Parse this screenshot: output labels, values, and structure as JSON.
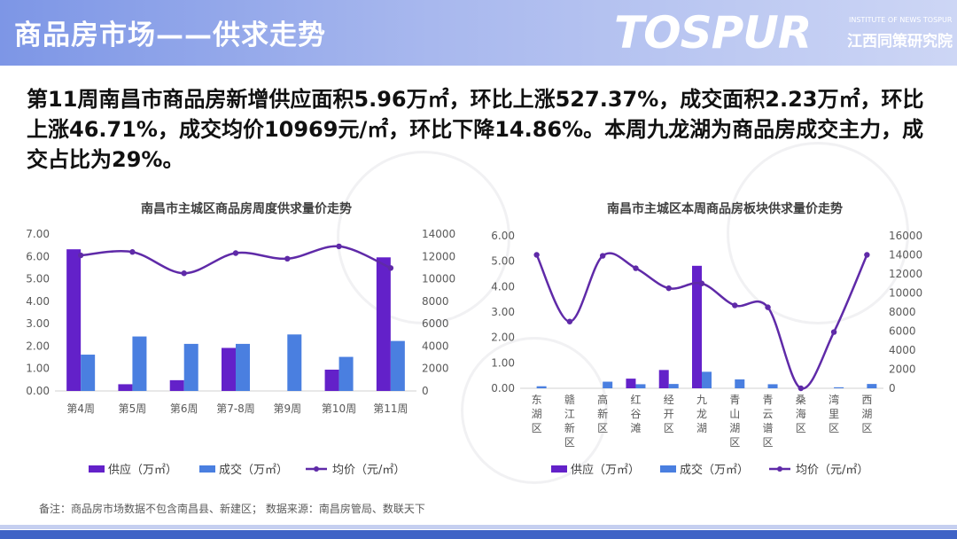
{
  "header": {
    "title": "商品房市场——供求走势"
  },
  "logo": {
    "main": "TOSPUR",
    "sub": "INSTITUTE OF NEWS TOSPUR",
    "cn": "江西同策研究院"
  },
  "summary": "第11周南昌市商品房新增供应面积5.96万㎡，环比上涨527.37%，成交面积2.23万㎡，环比上涨46.71%，成交均价10969元/㎡，环比下降14.86%。本周九龙湖为商品房成交主力，成交占比为29%。",
  "footnote": "备注：商品房市场数据不包含南昌县、新建区；  数据来源：南昌房管局、数联天下",
  "colors": {
    "supply": "#6321c9",
    "deal": "#4a7fe0",
    "price": "#5f2aa8"
  },
  "chart_data": [
    {
      "type": "bar",
      "title": "南昌市主城区商品房周度供求量价走势",
      "categories": [
        "第4周",
        "第5周",
        "第6周",
        "第7-8周",
        "第9周",
        "第10周",
        "第11周"
      ],
      "series": [
        {
          "name": "供应（万㎡）",
          "kind": "bar",
          "axis": "left",
          "values": [
            6.32,
            0.3,
            0.48,
            1.92,
            0,
            0.95,
            5.96
          ]
        },
        {
          "name": "成交（万㎡）",
          "kind": "bar",
          "axis": "left",
          "values": [
            1.62,
            2.43,
            2.1,
            2.1,
            2.52,
            1.52,
            2.23
          ]
        },
        {
          "name": "均价（元/㎡）",
          "kind": "line",
          "axis": "right",
          "values": [
            12100,
            12400,
            10500,
            12300,
            11800,
            12900,
            10969
          ]
        }
      ],
      "ylim_left": [
        0,
        7
      ],
      "yticks_left": [
        "0.00",
        "1.00",
        "2.00",
        "3.00",
        "4.00",
        "5.00",
        "6.00",
        "7.00"
      ],
      "ylim_right": [
        0,
        14000
      ],
      "yticks_right": [
        "0",
        "2000",
        "4000",
        "6000",
        "8000",
        "10000",
        "12000",
        "14000"
      ],
      "legend": "bottom"
    },
    {
      "type": "bar",
      "title": "南昌市主城区本周商品房板块供求量价走势",
      "categories": [
        "东湖区",
        "赣江新区",
        "高新区",
        "红谷滩",
        "经开区",
        "九龙湖",
        "青山湖区",
        "青云谱区",
        "桑海区",
        "湾里区",
        "西湖区"
      ],
      "series": [
        {
          "name": "供应（万㎡）",
          "kind": "bar",
          "axis": "left",
          "values": [
            0,
            0,
            0,
            0.38,
            0.72,
            4.82,
            0,
            0,
            0,
            0,
            0
          ]
        },
        {
          "name": "成交（万㎡）",
          "kind": "bar",
          "axis": "left",
          "values": [
            0.08,
            0,
            0.26,
            0.16,
            0.17,
            0.65,
            0.35,
            0.16,
            0,
            0.04,
            0.17
          ]
        },
        {
          "name": "均价（元/㎡）",
          "kind": "line",
          "axis": "right",
          "values": [
            14000,
            7000,
            13900,
            12600,
            10500,
            11000,
            8700,
            8500,
            0,
            5900,
            14000
          ]
        }
      ],
      "ylim_left": [
        0,
        6
      ],
      "yticks_left": [
        "0.00",
        "1.00",
        "2.00",
        "3.00",
        "4.00",
        "5.00",
        "6.00"
      ],
      "ylim_right": [
        0,
        16000
      ],
      "yticks_right": [
        "0",
        "2000",
        "4000",
        "6000",
        "8000",
        "10000",
        "12000",
        "14000",
        "16000"
      ],
      "legend": "bottom"
    }
  ]
}
